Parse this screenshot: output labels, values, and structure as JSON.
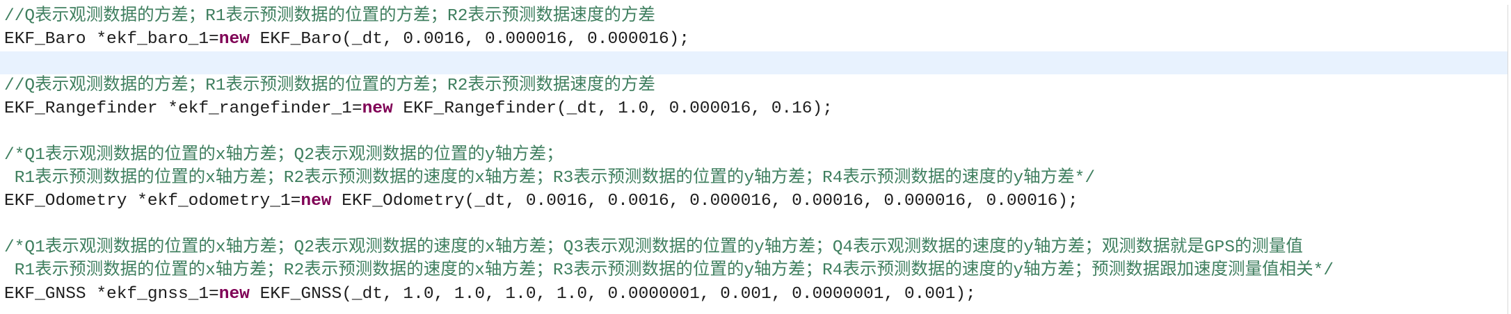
{
  "colors": {
    "comment": "#3f7f5f",
    "keyword": "#7f0055",
    "code": "#1e1e1e",
    "current_line": "#e8f2fe"
  },
  "lines": [
    {
      "segments": [
        {
          "type": "comment",
          "text": "//Q表示观测数据的方差；R1表示预测数据的位置的方差；R2表示预测数据速度的方差"
        }
      ]
    },
    {
      "segments": [
        {
          "type": "code",
          "text": "EKF_Baro *ekf_baro_1="
        },
        {
          "type": "kw",
          "text": "new"
        },
        {
          "type": "code",
          "text": " EKF_Baro(_dt, 0.0016, 0.000016, 0.000016);"
        }
      ]
    },
    {
      "current": true,
      "segments": []
    },
    {
      "segments": [
        {
          "type": "comment",
          "text": "//Q表示观测数据的方差；R1表示预测数据的位置的方差；R2表示预测数据速度的方差"
        }
      ]
    },
    {
      "segments": [
        {
          "type": "code",
          "text": "EKF_Rangefinder *ekf_rangefinder_1="
        },
        {
          "type": "kw",
          "text": "new"
        },
        {
          "type": "code",
          "text": " EKF_Rangefinder(_dt, 1.0, 0.000016, 0.16);"
        }
      ]
    },
    {
      "segments": []
    },
    {
      "segments": [
        {
          "type": "comment",
          "text": "/*Q1表示观测数据的位置的x轴方差；Q2表示观测数据的位置的y轴方差；"
        }
      ]
    },
    {
      "segments": [
        {
          "type": "comment",
          "text": " R1表示预测数据的位置的x轴方差；R2表示预测数据的速度的x轴方差；R3表示预测数据的位置的y轴方差；R4表示预测数据的速度的y轴方差*/"
        }
      ]
    },
    {
      "segments": [
        {
          "type": "code",
          "text": "EKF_Odometry *ekf_odometry_1="
        },
        {
          "type": "kw",
          "text": "new"
        },
        {
          "type": "code",
          "text": " EKF_Odometry(_dt, 0.0016, 0.0016, 0.000016, 0.00016, 0.000016, 0.00016);"
        }
      ]
    },
    {
      "segments": []
    },
    {
      "segments": [
        {
          "type": "comment",
          "text": "/*Q1表示观测数据的位置的x轴方差；Q2表示观测数据的速度的x轴方差；Q3表示观测数据的位置的y轴方差；Q4表示观测数据的速度的y轴方差；观测数据就是GPS的测量值"
        }
      ]
    },
    {
      "segments": [
        {
          "type": "comment",
          "text": " R1表示预测数据的位置的x轴方差；R2表示预测数据的速度的x轴方差；R3表示预测数据的位置的y轴方差；R4表示预测数据的速度的y轴方差；预测数据跟加速度测量值相关*/"
        }
      ]
    },
    {
      "segments": [
        {
          "type": "code",
          "text": "EKF_GNSS *ekf_gnss_1="
        },
        {
          "type": "kw",
          "text": "new"
        },
        {
          "type": "code",
          "text": " EKF_GNSS(_dt, 1.0, 1.0, 1.0, 1.0, 0.0000001, 0.001, 0.0000001, 0.001);"
        }
      ]
    }
  ]
}
